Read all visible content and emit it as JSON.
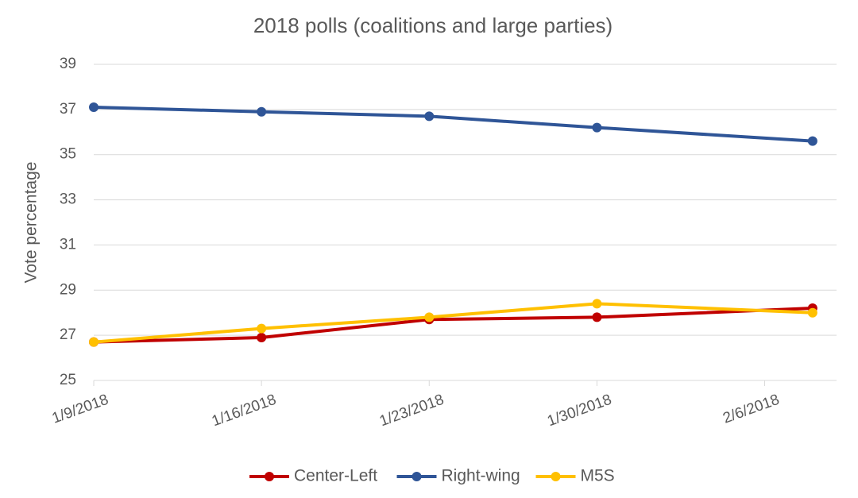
{
  "chart_data": {
    "type": "line",
    "title": "2018 polls (coalitions and large parties)",
    "y_label": "Vote percentage",
    "x": [
      "2018-01-09",
      "2018-01-16",
      "2018-01-23",
      "2018-01-30",
      "2018-02-08"
    ],
    "series": [
      {
        "name": "Center-Left",
        "color": "#c00000",
        "values": [
          26.7,
          26.9,
          27.7,
          27.8,
          28.2
        ]
      },
      {
        "name": "Right-wing",
        "color": "#2f5597",
        "values": [
          37.1,
          36.9,
          36.7,
          36.2,
          35.6
        ]
      },
      {
        "name": "M5S",
        "color": "#ffc000",
        "values": [
          26.7,
          27.3,
          27.8,
          28.4,
          28.0
        ]
      }
    ],
    "xlim": [
      "2018-01-09",
      "2018-02-09"
    ],
    "xticks": [
      {
        "value": "2018-01-09",
        "label": "1/9/2018"
      },
      {
        "value": "2018-01-16",
        "label": "1/16/2018"
      },
      {
        "value": "2018-01-23",
        "label": "1/23/2018"
      },
      {
        "value": "2018-01-30",
        "label": "1/30/2018"
      },
      {
        "value": "2018-02-06",
        "label": "2/6/2018"
      }
    ],
    "ylim": [
      25,
      39
    ],
    "yticks": [
      25,
      27,
      29,
      31,
      33,
      35,
      37,
      39
    ],
    "grid": true,
    "legend": "bottom"
  }
}
